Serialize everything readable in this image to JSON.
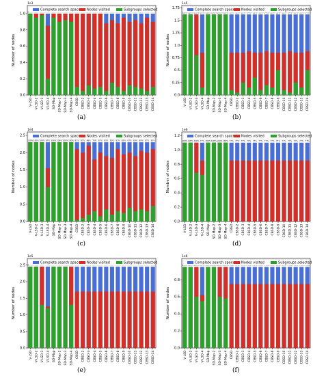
{
  "legend": [
    "Complete search space",
    "Nodes visited",
    "Subgroups selected"
  ],
  "colors": {
    "complete": "#4a6fd4",
    "visited": "#d03028",
    "selected": "#2ea02e"
  },
  "ylabel": "Number of nodes",
  "categories": [
    "V-LSD",
    "V-LSD-2",
    "V-LSD-3",
    "V-LSD-4",
    "SD-Map",
    "SD-Map-2",
    "SD-Map-3",
    "SD-Map-4",
    "CBSD",
    "CBSD-2",
    "CBSD-3",
    "CBSD-4",
    "CBSD-5",
    "CBSD-6",
    "CBSD-7",
    "CBSD-8",
    "CBSD-9",
    "CBSD-10",
    "CBSD-11",
    "CBSD-12",
    "CBSD-13",
    "CBSD-14"
  ],
  "chart_data": [
    {
      "type": "bar",
      "label": "(a)",
      "exponent": "1e3",
      "ylim": [
        0,
        1.1
      ],
      "yticks": [
        0.0,
        0.2,
        0.4,
        0.6,
        0.8,
        1.0
      ],
      "complete": [
        1.0,
        1.0,
        1.0,
        1.0,
        1.0,
        1.0,
        1.0,
        1.0,
        1.0,
        1.0,
        1.0,
        1.0,
        1.0,
        1.0,
        1.0,
        1.0,
        1.0,
        1.0,
        1.0,
        1.0,
        1.0,
        1.0
      ],
      "visited": [
        1.0,
        1.0,
        1.0,
        0.85,
        1.0,
        1.0,
        1.0,
        1.0,
        1.0,
        1.0,
        1.0,
        1.0,
        1.0,
        0.88,
        0.92,
        0.88,
        0.95,
        0.9,
        0.92,
        0.88,
        0.95,
        0.9
      ],
      "selected": [
        1.0,
        0.95,
        0.98,
        0.2,
        0.95,
        0.9,
        0.92,
        0.9,
        0.1,
        0.05,
        0.12,
        0.08,
        0.1,
        0.05,
        0.15,
        0.1,
        0.05,
        0.12,
        0.1,
        0.08,
        0.05,
        0.1
      ],
      "pct_labels": [
        "100%",
        "100%",
        "100%",
        "85%",
        "100%",
        "100%",
        "100%",
        "100%",
        "100%",
        "100%",
        "100%",
        "100%",
        "100%",
        "88%",
        "92%",
        "88%",
        "95%",
        "90%",
        "92%",
        "88%",
        "95%",
        "90%"
      ]
    },
    {
      "type": "bar",
      "label": "(b)",
      "exponent": "1e5",
      "ylim": [
        0,
        1.8
      ],
      "yticks": [
        0.0,
        0.25,
        0.5,
        0.75,
        1.0,
        1.25,
        1.5,
        1.75
      ],
      "complete": [
        1.62,
        1.62,
        1.62,
        1.62,
        1.62,
        1.62,
        1.62,
        1.62,
        1.62,
        1.62,
        1.62,
        1.62,
        1.62,
        1.62,
        1.62,
        1.62,
        1.62,
        1.62,
        1.62,
        1.62,
        1.62,
        1.62
      ],
      "visited": [
        1.62,
        1.62,
        1.62,
        0.85,
        1.62,
        1.62,
        1.62,
        1.62,
        0.85,
        0.85,
        0.85,
        0.88,
        0.85,
        0.85,
        0.88,
        0.85,
        0.85,
        0.85,
        0.88,
        0.85,
        0.85,
        0.88
      ],
      "selected": [
        1.62,
        1.62,
        0.8,
        0.15,
        1.62,
        1.62,
        1.62,
        1.62,
        0.1,
        0.05,
        0.25,
        0.15,
        0.35,
        0.1,
        0.2,
        0.15,
        0.5,
        0.1,
        0.05,
        0.25,
        0.15,
        0.5
      ],
      "pct_labels": [
        "100%",
        "100%",
        "100%",
        "52%",
        "100%",
        "100%",
        "100%",
        "100%",
        "52%",
        "52%",
        "52%",
        "54%",
        "52%",
        "52%",
        "54%",
        "52%",
        "52%",
        "52%",
        "54%",
        "52%",
        "52%",
        "54%"
      ]
    },
    {
      "type": "bar",
      "label": "(c)",
      "exponent": "1e4",
      "ylim": [
        0,
        2.6
      ],
      "yticks": [
        0.0,
        0.5,
        1.0,
        1.5,
        2.0,
        2.5
      ],
      "complete": [
        2.3,
        2.3,
        2.3,
        2.3,
        2.3,
        2.3,
        2.3,
        2.3,
        2.3,
        2.3,
        2.3,
        2.3,
        2.3,
        2.3,
        2.3,
        2.3,
        2.3,
        2.3,
        2.3,
        2.3,
        2.3,
        2.3
      ],
      "visited": [
        2.3,
        2.3,
        2.3,
        1.55,
        2.3,
        2.3,
        2.3,
        2.3,
        2.1,
        2.0,
        2.2,
        1.8,
        2.0,
        1.9,
        1.85,
        2.1,
        1.95,
        2.0,
        1.9,
        2.05,
        2.0,
        2.1
      ],
      "selected": [
        2.3,
        2.3,
        2.3,
        1.0,
        2.3,
        2.3,
        2.3,
        2.3,
        0.05,
        0.1,
        0.2,
        0.3,
        0.15,
        0.35,
        0.2,
        0.3,
        0.25,
        0.4,
        0.3,
        0.35,
        0.3,
        0.45
      ],
      "pct_labels": [
        "100%",
        "100%",
        "100%",
        "67%",
        "100%",
        "100%",
        "100%",
        "100%",
        "91%",
        "87%",
        "96%",
        "78%",
        "87%",
        "83%",
        "80%",
        "91%",
        "85%",
        "87%",
        "83%",
        "89%",
        "87%",
        "91%"
      ]
    },
    {
      "type": "bar",
      "label": "(d)",
      "exponent": "1e6",
      "ylim": [
        0,
        1.25
      ],
      "yticks": [
        0.0,
        0.2,
        0.4,
        0.6,
        0.8,
        1.0,
        1.2
      ],
      "complete": [
        1.1,
        1.1,
        1.1,
        1.1,
        1.1,
        1.1,
        1.1,
        1.1,
        1.1,
        1.1,
        1.1,
        1.1,
        1.1,
        1.1,
        1.1,
        1.1,
        1.1,
        1.1,
        1.1,
        1.1,
        1.1,
        1.1
      ],
      "visited": [
        1.1,
        1.1,
        1.1,
        0.85,
        1.1,
        1.1,
        1.1,
        1.1,
        0.85,
        0.85,
        0.85,
        0.85,
        0.85,
        0.85,
        0.85,
        0.85,
        0.85,
        0.85,
        0.85,
        0.85,
        0.85,
        0.85
      ],
      "selected": [
        1.1,
        1.1,
        0.68,
        0.65,
        1.1,
        1.1,
        1.1,
        1.1,
        0.0,
        0.0,
        0.0,
        0.0,
        0.0,
        0.0,
        0.0,
        0.0,
        0.0,
        0.0,
        0.0,
        0.0,
        0.0,
        0.0
      ],
      "pct_labels": [
        "100%",
        "100%",
        "100%",
        "77%",
        "100%",
        "100%",
        "100%",
        "100%",
        "77%",
        "77%",
        "77%",
        "77%",
        "77%",
        "77%",
        "77%",
        "77%",
        "77%",
        "77%",
        "77%",
        "77%",
        "77%",
        "77%"
      ]
    },
    {
      "type": "bar",
      "label": "(e)",
      "exponent": "1e5",
      "ylim": [
        0,
        2.7
      ],
      "yticks": [
        0.0,
        0.5,
        1.0,
        1.5,
        2.0,
        2.5
      ],
      "complete": [
        2.45,
        2.45,
        2.45,
        2.45,
        2.45,
        2.45,
        2.45,
        2.45,
        2.45,
        2.45,
        2.45,
        2.45,
        2.45,
        2.45,
        2.45,
        2.45,
        2.45,
        2.45,
        2.45,
        2.45,
        2.45,
        2.45
      ],
      "visited": [
        2.45,
        2.45,
        2.45,
        1.25,
        2.45,
        2.45,
        2.45,
        2.45,
        1.7,
        1.7,
        1.7,
        1.7,
        1.7,
        1.7,
        1.7,
        1.7,
        1.7,
        1.7,
        1.7,
        1.7,
        1.7,
        1.7
      ],
      "selected": [
        2.45,
        2.45,
        1.3,
        1.2,
        2.45,
        2.45,
        2.45,
        1.3,
        0.0,
        0.0,
        0.0,
        0.0,
        0.0,
        0.0,
        0.0,
        0.0,
        0.0,
        0.0,
        0.0,
        0.0,
        0.0,
        0.0
      ],
      "pct_labels": [
        "100%",
        "100%",
        "100%",
        "51%",
        "100%",
        "100%",
        "100%",
        "100%",
        "69%",
        "69%",
        "69%",
        "69%",
        "69%",
        "69%",
        "69%",
        "69%",
        "69%",
        "69%",
        "69%",
        "69%",
        "69%",
        "69%"
      ]
    },
    {
      "type": "bar",
      "label": "(f)",
      "exponent": "1e6",
      "ylim": [
        0,
        1.05
      ],
      "yticks": [
        0.0,
        0.2,
        0.4,
        0.6,
        0.8
      ],
      "complete": [
        0.95,
        0.95,
        0.95,
        0.95,
        0.95,
        0.95,
        0.95,
        0.95,
        0.95,
        0.95,
        0.95,
        0.95,
        0.95,
        0.95,
        0.95,
        0.95,
        0.95,
        0.95,
        0.95,
        0.95,
        0.95,
        0.95
      ],
      "visited": [
        0.95,
        0.95,
        0.95,
        0.62,
        0.95,
        0.95,
        0.95,
        0.95,
        0.75,
        0.75,
        0.75,
        0.75,
        0.75,
        0.75,
        0.75,
        0.75,
        0.75,
        0.75,
        0.75,
        0.75,
        0.75,
        0.75
      ],
      "selected": [
        0.95,
        0.95,
        0.6,
        0.55,
        0.95,
        0.95,
        0.6,
        0.58,
        0.0,
        0.0,
        0.0,
        0.0,
        0.0,
        0.0,
        0.0,
        0.0,
        0.0,
        0.0,
        0.0,
        0.0,
        0.0,
        0.0
      ],
      "pct_labels": [
        "100%",
        "100%",
        "100%",
        "65%",
        "100%",
        "100%",
        "100%",
        "100%",
        "79%",
        "79%",
        "79%",
        "79%",
        "79%",
        "79%",
        "79%",
        "79%",
        "79%",
        "79%",
        "79%",
        "79%",
        "79%",
        "79%"
      ]
    }
  ]
}
